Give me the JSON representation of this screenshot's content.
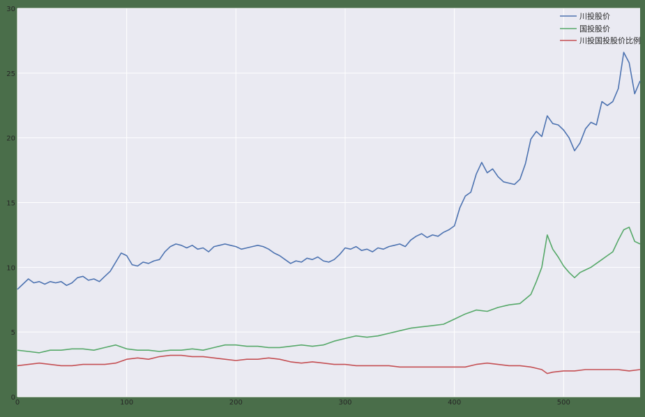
{
  "chart_data": {
    "type": "line",
    "xlim": [
      0,
      570
    ],
    "ylim": [
      0,
      30
    ],
    "xticks": [
      0,
      100,
      200,
      300,
      400,
      500
    ],
    "yticks": [
      0,
      5,
      10,
      15,
      20,
      25,
      30
    ],
    "xticklabels": [
      "0",
      "100",
      "200",
      "300",
      "400",
      "500"
    ],
    "yticklabels": [
      "0",
      "5",
      "10",
      "15",
      "20",
      "25",
      "30"
    ],
    "grid": true,
    "legend_position": "top-right",
    "series": [
      {
        "name": "川投股价",
        "color": "#4c72b0",
        "points": [
          [
            0,
            8.3
          ],
          [
            5,
            8.7
          ],
          [
            10,
            9.1
          ],
          [
            15,
            8.8
          ],
          [
            20,
            8.9
          ],
          [
            25,
            8.7
          ],
          [
            30,
            8.9
          ],
          [
            35,
            8.8
          ],
          [
            40,
            8.9
          ],
          [
            45,
            8.6
          ],
          [
            50,
            8.8
          ],
          [
            55,
            9.2
          ],
          [
            60,
            9.3
          ],
          [
            65,
            9.0
          ],
          [
            70,
            9.1
          ],
          [
            75,
            8.9
          ],
          [
            80,
            9.3
          ],
          [
            85,
            9.7
          ],
          [
            90,
            10.4
          ],
          [
            95,
            11.1
          ],
          [
            100,
            10.9
          ],
          [
            105,
            10.2
          ],
          [
            110,
            10.1
          ],
          [
            115,
            10.4
          ],
          [
            120,
            10.3
          ],
          [
            125,
            10.5
          ],
          [
            130,
            10.6
          ],
          [
            135,
            11.2
          ],
          [
            140,
            11.6
          ],
          [
            145,
            11.8
          ],
          [
            150,
            11.7
          ],
          [
            155,
            11.5
          ],
          [
            160,
            11.7
          ],
          [
            165,
            11.4
          ],
          [
            170,
            11.5
          ],
          [
            175,
            11.2
          ],
          [
            180,
            11.6
          ],
          [
            185,
            11.7
          ],
          [
            190,
            11.8
          ],
          [
            195,
            11.7
          ],
          [
            200,
            11.6
          ],
          [
            205,
            11.4
          ],
          [
            210,
            11.5
          ],
          [
            215,
            11.6
          ],
          [
            220,
            11.7
          ],
          [
            225,
            11.6
          ],
          [
            230,
            11.4
          ],
          [
            235,
            11.1
          ],
          [
            240,
            10.9
          ],
          [
            245,
            10.6
          ],
          [
            250,
            10.3
          ],
          [
            255,
            10.5
          ],
          [
            260,
            10.4
          ],
          [
            265,
            10.7
          ],
          [
            270,
            10.6
          ],
          [
            275,
            10.8
          ],
          [
            280,
            10.5
          ],
          [
            285,
            10.4
          ],
          [
            290,
            10.6
          ],
          [
            295,
            11.0
          ],
          [
            300,
            11.5
          ],
          [
            305,
            11.4
          ],
          [
            310,
            11.6
          ],
          [
            315,
            11.3
          ],
          [
            320,
            11.4
          ],
          [
            325,
            11.2
          ],
          [
            330,
            11.5
          ],
          [
            335,
            11.4
          ],
          [
            340,
            11.6
          ],
          [
            345,
            11.7
          ],
          [
            350,
            11.8
          ],
          [
            355,
            11.6
          ],
          [
            360,
            12.1
          ],
          [
            365,
            12.4
          ],
          [
            370,
            12.6
          ],
          [
            375,
            12.3
          ],
          [
            380,
            12.5
          ],
          [
            385,
            12.4
          ],
          [
            390,
            12.7
          ],
          [
            395,
            12.9
          ],
          [
            400,
            13.2
          ],
          [
            405,
            14.6
          ],
          [
            410,
            15.5
          ],
          [
            415,
            15.8
          ],
          [
            420,
            17.2
          ],
          [
            425,
            18.1
          ],
          [
            430,
            17.3
          ],
          [
            435,
            17.6
          ],
          [
            440,
            17.0
          ],
          [
            445,
            16.6
          ],
          [
            450,
            16.5
          ],
          [
            455,
            16.4
          ],
          [
            460,
            16.8
          ],
          [
            465,
            18.0
          ],
          [
            470,
            19.9
          ],
          [
            475,
            20.5
          ],
          [
            480,
            20.1
          ],
          [
            485,
            21.7
          ],
          [
            490,
            21.1
          ],
          [
            495,
            21.0
          ],
          [
            500,
            20.6
          ],
          [
            505,
            20.0
          ],
          [
            510,
            19.0
          ],
          [
            515,
            19.6
          ],
          [
            520,
            20.7
          ],
          [
            525,
            21.2
          ],
          [
            530,
            21.0
          ],
          [
            535,
            22.8
          ],
          [
            540,
            22.5
          ],
          [
            545,
            22.8
          ],
          [
            550,
            23.8
          ],
          [
            555,
            26.6
          ],
          [
            560,
            25.8
          ],
          [
            565,
            23.4
          ],
          [
            570,
            24.4
          ]
        ]
      },
      {
        "name": "国投股价",
        "color": "#55a868",
        "points": [
          [
            0,
            3.6
          ],
          [
            10,
            3.5
          ],
          [
            20,
            3.4
          ],
          [
            30,
            3.6
          ],
          [
            40,
            3.6
          ],
          [
            50,
            3.7
          ],
          [
            60,
            3.7
          ],
          [
            70,
            3.6
          ],
          [
            80,
            3.8
          ],
          [
            90,
            4.0
          ],
          [
            100,
            3.7
          ],
          [
            110,
            3.6
          ],
          [
            120,
            3.6
          ],
          [
            130,
            3.5
          ],
          [
            140,
            3.6
          ],
          [
            150,
            3.6
          ],
          [
            160,
            3.7
          ],
          [
            170,
            3.6
          ],
          [
            180,
            3.8
          ],
          [
            190,
            4.0
          ],
          [
            200,
            4.0
          ],
          [
            210,
            3.9
          ],
          [
            220,
            3.9
          ],
          [
            230,
            3.8
          ],
          [
            240,
            3.8
          ],
          [
            250,
            3.9
          ],
          [
            260,
            4.0
          ],
          [
            270,
            3.9
          ],
          [
            280,
            4.0
          ],
          [
            290,
            4.3
          ],
          [
            300,
            4.5
          ],
          [
            310,
            4.7
          ],
          [
            320,
            4.6
          ],
          [
            330,
            4.7
          ],
          [
            340,
            4.9
          ],
          [
            350,
            5.1
          ],
          [
            360,
            5.3
          ],
          [
            370,
            5.4
          ],
          [
            380,
            5.5
          ],
          [
            390,
            5.6
          ],
          [
            400,
            6.0
          ],
          [
            410,
            6.4
          ],
          [
            420,
            6.7
          ],
          [
            430,
            6.6
          ],
          [
            440,
            6.9
          ],
          [
            450,
            7.1
          ],
          [
            460,
            7.2
          ],
          [
            470,
            7.9
          ],
          [
            475,
            8.9
          ],
          [
            480,
            10.0
          ],
          [
            485,
            12.5
          ],
          [
            490,
            11.4
          ],
          [
            495,
            10.8
          ],
          [
            500,
            10.1
          ],
          [
            505,
            9.6
          ],
          [
            510,
            9.2
          ],
          [
            515,
            9.6
          ],
          [
            520,
            9.8
          ],
          [
            525,
            10.0
          ],
          [
            530,
            10.3
          ],
          [
            535,
            10.6
          ],
          [
            540,
            10.9
          ],
          [
            545,
            11.2
          ],
          [
            550,
            12.1
          ],
          [
            555,
            12.9
          ],
          [
            560,
            13.1
          ],
          [
            565,
            12.0
          ],
          [
            570,
            11.8
          ]
        ]
      },
      {
        "name": "川投国投股价比例",
        "color": "#c44e52",
        "points": [
          [
            0,
            2.4
          ],
          [
            10,
            2.5
          ],
          [
            20,
            2.6
          ],
          [
            30,
            2.5
          ],
          [
            40,
            2.4
          ],
          [
            50,
            2.4
          ],
          [
            60,
            2.5
          ],
          [
            70,
            2.5
          ],
          [
            80,
            2.5
          ],
          [
            90,
            2.6
          ],
          [
            100,
            2.9
          ],
          [
            110,
            3.0
          ],
          [
            120,
            2.9
          ],
          [
            130,
            3.1
          ],
          [
            140,
            3.2
          ],
          [
            150,
            3.2
          ],
          [
            160,
            3.1
          ],
          [
            170,
            3.1
          ],
          [
            180,
            3.0
          ],
          [
            190,
            2.9
          ],
          [
            200,
            2.8
          ],
          [
            210,
            2.9
          ],
          [
            220,
            2.9
          ],
          [
            230,
            3.0
          ],
          [
            240,
            2.9
          ],
          [
            250,
            2.7
          ],
          [
            260,
            2.6
          ],
          [
            270,
            2.7
          ],
          [
            280,
            2.6
          ],
          [
            290,
            2.5
          ],
          [
            300,
            2.5
          ],
          [
            310,
            2.4
          ],
          [
            320,
            2.4
          ],
          [
            330,
            2.4
          ],
          [
            340,
            2.4
          ],
          [
            350,
            2.3
          ],
          [
            360,
            2.3
          ],
          [
            370,
            2.3
          ],
          [
            380,
            2.3
          ],
          [
            390,
            2.3
          ],
          [
            400,
            2.3
          ],
          [
            410,
            2.3
          ],
          [
            420,
            2.5
          ],
          [
            430,
            2.6
          ],
          [
            440,
            2.5
          ],
          [
            450,
            2.4
          ],
          [
            460,
            2.4
          ],
          [
            470,
            2.3
          ],
          [
            480,
            2.1
          ],
          [
            485,
            1.8
          ],
          [
            490,
            1.9
          ],
          [
            500,
            2.0
          ],
          [
            510,
            2.0
          ],
          [
            520,
            2.1
          ],
          [
            530,
            2.1
          ],
          [
            540,
            2.1
          ],
          [
            550,
            2.1
          ],
          [
            560,
            2.0
          ],
          [
            570,
            2.1
          ]
        ]
      }
    ]
  }
}
